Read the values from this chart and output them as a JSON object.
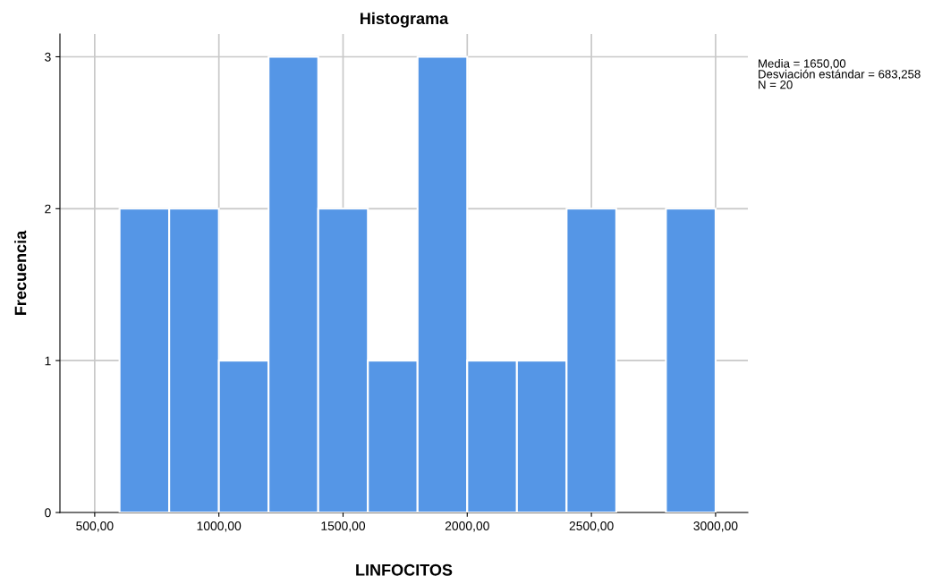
{
  "chart_data": {
    "type": "histogram",
    "title": "Histograma",
    "xlabel": "LINFOCITOS",
    "ylabel": "Frecuencia",
    "bins": [
      600,
      800,
      1000,
      1200,
      1400,
      1600,
      1800,
      2000,
      2200,
      2400,
      2600,
      2800,
      3000
    ],
    "values": [
      2,
      2,
      1,
      3,
      2,
      1,
      3,
      1,
      1,
      2,
      0,
      2
    ],
    "color": "#5596e6",
    "xlim": [
      360,
      3130
    ],
    "ylim": [
      0,
      3.15
    ],
    "xticks": [
      {
        "value": 500,
        "label": "500,00"
      },
      {
        "value": 1000,
        "label": "1000,00"
      },
      {
        "value": 1500,
        "label": "1500,00"
      },
      {
        "value": 2000,
        "label": "2000,00"
      },
      {
        "value": 2500,
        "label": "2500,00"
      },
      {
        "value": 3000,
        "label": "3000,00"
      }
    ],
    "yticks": [
      0,
      1,
      2,
      3
    ],
    "grid": true,
    "annotations": [
      "Media = 1650,00\nDesviación estándar = 683,258\nN = 20"
    ]
  }
}
